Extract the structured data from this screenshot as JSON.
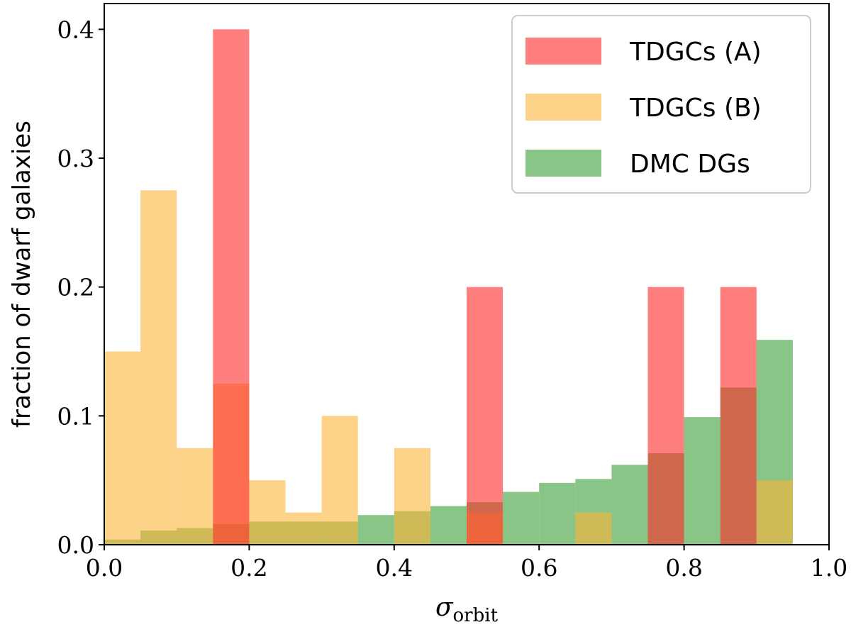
{
  "chart_data": {
    "type": "bar",
    "title": "",
    "xlabel": "σ",
    "xlabel_sub": "orbit",
    "ylabel": "fraction of dwarf galaxies",
    "xlim": [
      0.0,
      1.0
    ],
    "ylim": [
      0.0,
      0.42
    ],
    "bin_width": 0.05,
    "bin_starts": [
      0.0,
      0.05,
      0.1,
      0.15,
      0.2,
      0.25,
      0.3,
      0.35,
      0.4,
      0.45,
      0.5,
      0.55,
      0.6,
      0.65,
      0.7,
      0.75,
      0.8,
      0.85,
      0.9
    ],
    "xticks": [
      "0.0",
      "0.2",
      "0.4",
      "0.6",
      "0.8",
      "1.0"
    ],
    "xtick_values": [
      0.0,
      0.2,
      0.4,
      0.6,
      0.8,
      1.0
    ],
    "yticks": [
      "0.0",
      "0.1",
      "0.2",
      "0.3",
      "0.4"
    ],
    "ytick_values": [
      0.0,
      0.1,
      0.2,
      0.3,
      0.4
    ],
    "legend_position": "top-right",
    "series": [
      {
        "name": "DMC DGs",
        "color": "#3a9e36",
        "values": [
          0.004,
          0.011,
          0.013,
          0.016,
          0.018,
          0.018,
          0.018,
          0.023,
          0.026,
          0.03,
          0.033,
          0.041,
          0.048,
          0.051,
          0.062,
          0.071,
          0.099,
          0.122,
          0.159
        ]
      },
      {
        "name": "TDGCs (B)",
        "color": "#fcb43a",
        "values": [
          0.15,
          0.275,
          0.075,
          0.125,
          0.05,
          0.025,
          0.1,
          0.0,
          0.075,
          0.0,
          0.025,
          0.0,
          0.0,
          0.025,
          0.0,
          0.0,
          0.0,
          0.0,
          0.05
        ]
      },
      {
        "name": "TDGCs (A)",
        "color": "#ff2a2a",
        "values": [
          0.0,
          0.0,
          0.0,
          0.4,
          0.0,
          0.0,
          0.0,
          0.0,
          0.0,
          0.0,
          0.2,
          0.0,
          0.0,
          0.0,
          0.0,
          0.2,
          0.0,
          0.2,
          0.0
        ]
      }
    ],
    "legend_order": [
      "TDGCs (A)",
      "TDGCs (B)",
      "DMC DGs"
    ]
  }
}
